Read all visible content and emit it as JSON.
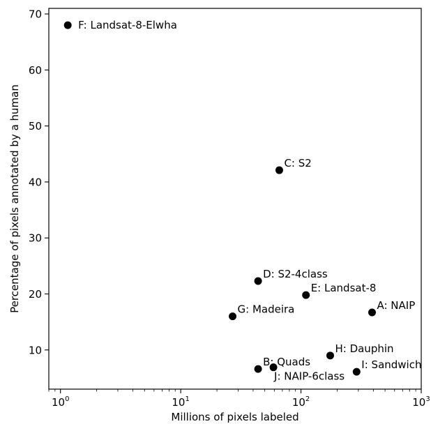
{
  "chart_data": {
    "type": "scatter",
    "title": "",
    "xlabel": "Millions of pixels labeled",
    "ylabel": "Percentage of pixels annotated by a human",
    "xscale": "log",
    "xlim": [
      0.8,
      1000
    ],
    "ylim": [
      3,
      71
    ],
    "xticks": [
      {
        "value": 1,
        "base": "10",
        "exp": "0"
      },
      {
        "value": 10,
        "base": "10",
        "exp": "1"
      },
      {
        "value": 100,
        "base": "10",
        "exp": "2"
      },
      {
        "value": 1000,
        "base": "10",
        "exp": "3"
      }
    ],
    "yticks": [
      {
        "value": 10,
        "label": "10"
      },
      {
        "value": 20,
        "label": "20"
      },
      {
        "value": 30,
        "label": "30"
      },
      {
        "value": 40,
        "label": "40"
      },
      {
        "value": 50,
        "label": "50"
      },
      {
        "value": 60,
        "label": "60"
      },
      {
        "value": 70,
        "label": "70"
      }
    ],
    "grid": false,
    "marker_color": "#000000",
    "points": [
      {
        "label": "F: Landsat-8-Elwha",
        "x": 1.15,
        "y": 68.0
      },
      {
        "label": "C: S2",
        "x": 66,
        "y": 42.1
      },
      {
        "label": "D: S2-4class",
        "x": 44,
        "y": 22.3
      },
      {
        "label": "E: Landsat-8",
        "x": 110,
        "y": 19.8
      },
      {
        "label": "A: NAIP",
        "x": 390,
        "y": 16.7
      },
      {
        "label": "G: Madeira",
        "x": 27,
        "y": 16.0
      },
      {
        "label": "H: Dauphin",
        "x": 175,
        "y": 9.0
      },
      {
        "label": "B: Quads",
        "x": 44,
        "y": 6.6
      },
      {
        "label": "J: NAIP-6class",
        "x": 59,
        "y": 6.9
      },
      {
        "label": "I: Sandwich",
        "x": 290,
        "y": 6.1
      }
    ]
  }
}
